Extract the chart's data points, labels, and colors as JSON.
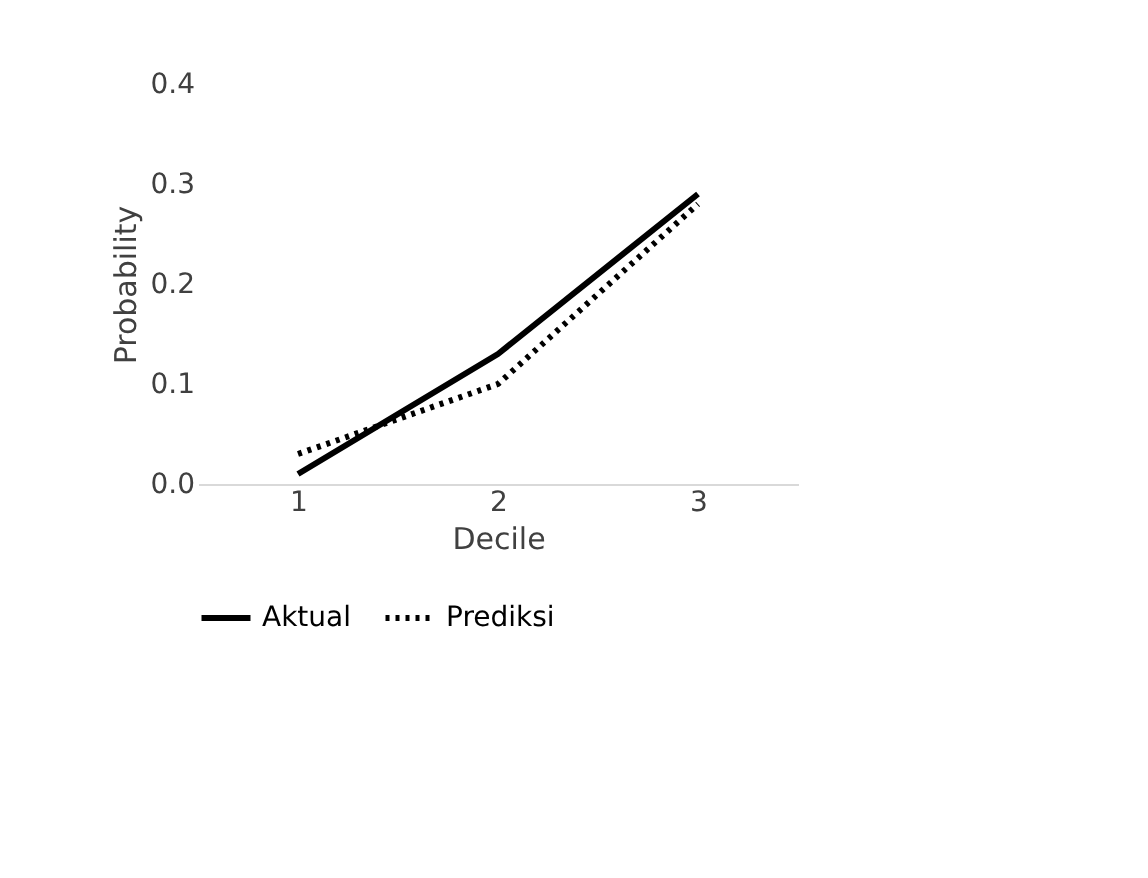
{
  "chart_data": {
    "type": "line",
    "xlabel": "Decile",
    "ylabel": "Probability",
    "categories": [
      "1",
      "2",
      "3"
    ],
    "series": [
      {
        "name": "Aktual",
        "color": "#000000",
        "line_style": "solid",
        "values": [
          0.01,
          0.13,
          0.29
        ]
      },
      {
        "name": "Prediksi",
        "color": "#000000",
        "line_style": "dotted",
        "values": [
          0.03,
          0.1,
          0.28
        ]
      }
    ],
    "ylim": [
      0,
      0.4
    ],
    "yticks": [
      {
        "value": 0,
        "label": "0.0"
      },
      0.1,
      0.2,
      0.3,
      0.4
    ],
    "grid": false,
    "legend": "bottom",
    "marker": "none"
  }
}
